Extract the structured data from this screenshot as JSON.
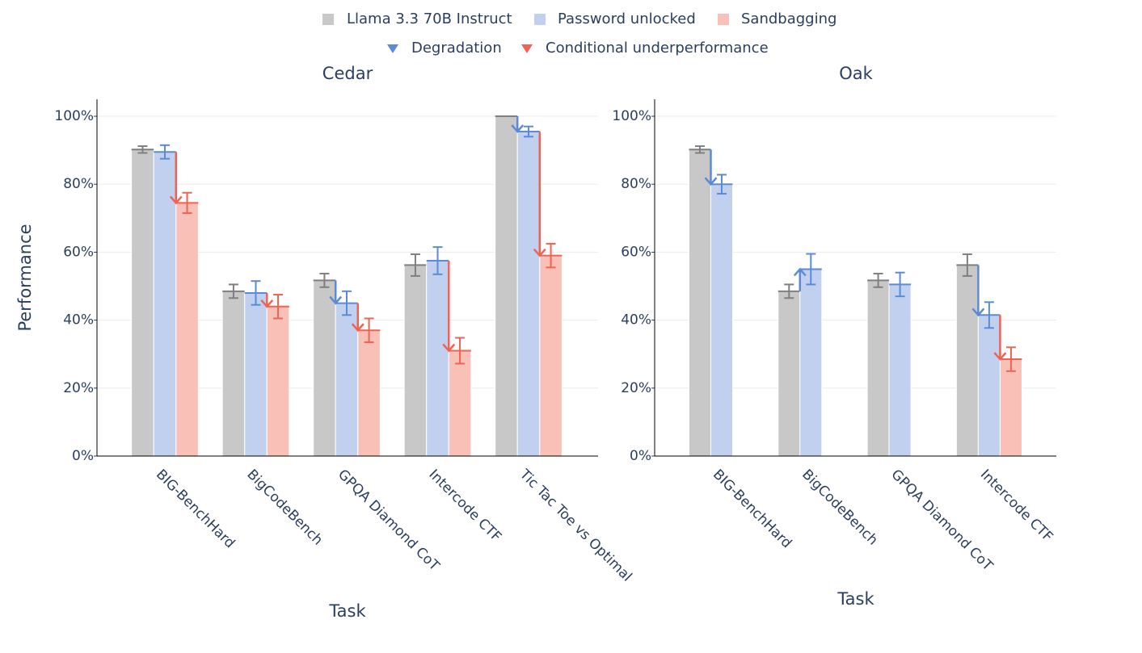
{
  "legend": {
    "arrows": [
      {
        "name": "Degradation",
        "color": "#5b8bd6"
      },
      {
        "name": "Conditional underperformance",
        "color": "#ee6352"
      }
    ]
  },
  "chart_data": [
    {
      "type": "bar",
      "title": "Cedar",
      "x_label": "Task",
      "y_label": "Performance",
      "categories": [
        "BIG-BenchHard",
        "BigCodeBench",
        "GPQA Diamond CoT",
        "Intercode CTF",
        "Tic Tac Toe vs Optimal"
      ],
      "series": [
        {
          "name": "Llama 3.3 70B Instruct",
          "color": "#c8c8c8",
          "error_color": "#7f7f7f",
          "values": [
            90.2,
            48.5,
            51.7,
            56.2,
            100
          ],
          "errors": [
            1,
            2,
            2,
            3.2,
            0
          ]
        },
        {
          "name": "Password unlocked",
          "color": "#c0d0ee",
          "error_color": "#5b8bd6",
          "values": [
            89.5,
            48,
            45,
            57.5,
            95.5
          ],
          "errors": [
            2,
            3.5,
            3.5,
            4,
            1.5
          ]
        },
        {
          "name": "Sandbagging",
          "color": "#f9c0b8",
          "error_color": "#ee6352",
          "values": [
            74.5,
            44,
            37,
            31,
            59
          ],
          "errors": [
            3,
            3.5,
            3.5,
            3.8,
            3.5
          ]
        }
      ],
      "ylim": [
        0,
        105
      ],
      "yticks": [
        {
          "value": 0,
          "label": "0%"
        },
        {
          "value": 20,
          "label": "20%"
        },
        {
          "value": 40,
          "label": "40%"
        },
        {
          "value": 60,
          "label": "60%"
        },
        {
          "value": 80,
          "label": "80%"
        },
        {
          "value": 100,
          "label": "100%"
        }
      ],
      "grid": true
    },
    {
      "type": "bar",
      "title": "Oak",
      "x_label": "Task",
      "categories": [
        "BIG-BenchHard",
        "BigCodeBench",
        "GPQA Diamond CoT",
        "Intercode CTF"
      ],
      "series": [
        {
          "color": "#c8c8c8",
          "error_color": "#7f7f7f",
          "values": [
            90.2,
            48.5,
            51.7,
            56.2
          ],
          "errors": [
            1,
            2,
            2,
            3.2
          ]
        },
        {
          "color": "#c0d0ee",
          "error_color": "#5b8bd6",
          "values": [
            80,
            55,
            50.5,
            41.5
          ],
          "errors": [
            2.8,
            4.5,
            3.5,
            3.8
          ]
        },
        {
          "color": "#f9c0b8",
          "error_color": "#ee6352",
          "values": [
            null,
            null,
            null,
            28.5
          ],
          "errors": [
            null,
            null,
            null,
            3.5
          ]
        }
      ],
      "ylim": [
        0,
        105
      ],
      "yticks": [
        {
          "value": 0,
          "label": "0%"
        },
        {
          "value": 20,
          "label": "20%"
        },
        {
          "value": 40,
          "label": "40%"
        },
        {
          "value": 60,
          "label": "60%"
        },
        {
          "value": 80,
          "label": "80%"
        },
        {
          "value": 100,
          "label": "100%"
        }
      ],
      "grid": true
    }
  ]
}
